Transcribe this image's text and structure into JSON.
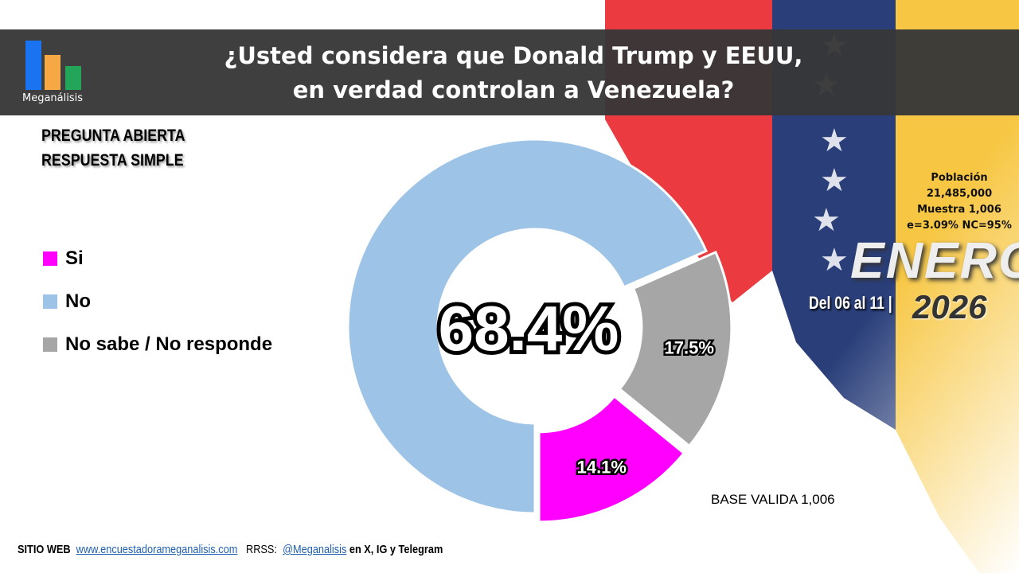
{
  "header": {
    "title_line1": "¿Usted considera que Donald Trump y EEUU,",
    "title_line2": "en verdad controlan a Venezuela?",
    "logo": "Meganálisis"
  },
  "subtitle": {
    "line1": "PREGUNTA  ABIERTA",
    "line2": "RESPUESTA SIMPLE"
  },
  "info": {
    "poblacion_label": "Población",
    "poblacion": "21,485,000",
    "muestra": "Muestra 1,006",
    "error": "e=3.09%  NC=95%"
  },
  "period": {
    "month": "ENERO",
    "dates": "Del 06 al 11 |",
    "year": "2026"
  },
  "base": "BASE VALIDA 1,006",
  "footer": {
    "site_label": "SITIO WEB",
    "site": "www.encuestadorameganalisis.com",
    "rrss_label": "RRSS:",
    "handle": "@Meganalisis",
    "rest": "en X, IG y Telegram"
  },
  "chart_data": {
    "type": "pie",
    "title": "¿Usted considera que Donald Trump y EEUU, en verdad controlan a Venezuela?",
    "categories": [
      "Si",
      "No",
      "No sabe / No responde"
    ],
    "values": [
      14.1,
      68.4,
      17.5
    ],
    "labels": [
      "14.1%",
      "68.4%",
      "17.5%"
    ],
    "colors": [
      "#ff00ff",
      "#9dc3e6",
      "#a6a6a6"
    ],
    "legend": "left",
    "donut": true
  }
}
